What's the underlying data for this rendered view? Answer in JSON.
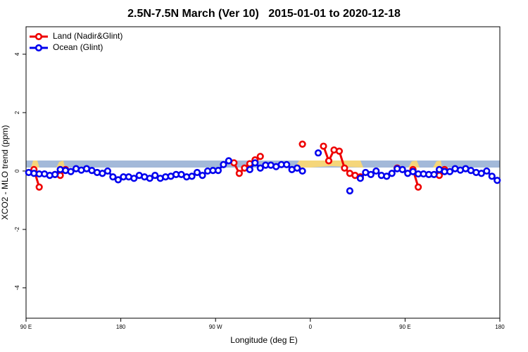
{
  "chart_data": {
    "type": "line",
    "title": "2.5N-7.5N March (Ver 10)   2015-01-01 to 2020-12-18",
    "x_label": "Longitude (deg E)",
    "y_label": "XCO2 - MLO trend (ppm)",
    "xlim": [
      90,
      540
    ],
    "ylim": [
      -5.04,
      4.94
    ],
    "xticks": [
      {
        "value": 90,
        "label": "90 E"
      },
      180,
      {
        "value": 270,
        "label": "90 W"
      },
      {
        "value": 360,
        "label": "0"
      },
      {
        "value": 450,
        "label": "90 E"
      },
      {
        "value": 540,
        "label": "180"
      }
    ],
    "yticks": [
      -4,
      -2,
      0,
      2,
      4
    ],
    "legend": "top-left",
    "x": [
      92.5,
      97.5,
      102.5,
      107.5,
      112.5,
      117.5,
      122.5,
      127.5,
      132.5,
      137.5,
      142.5,
      147.5,
      152.5,
      157.5,
      162.5,
      167.5,
      172.5,
      177.5,
      182.5,
      187.5,
      192.5,
      197.5,
      202.5,
      207.5,
      212.5,
      217.5,
      222.5,
      227.5,
      232.5,
      237.5,
      242.5,
      247.5,
      252.5,
      257.5,
      262.5,
      267.5,
      272.5,
      277.5,
      282.5,
      287.5,
      292.5,
      297.5,
      302.5,
      307.5,
      312.5,
      317.5,
      322.5,
      327.5,
      332.5,
      337.5,
      342.5,
      347.5,
      352.5,
      357.5,
      362.5,
      367.5,
      372.5,
      377.5,
      382.5,
      387.5,
      392.5,
      397.5,
      402.5,
      407.5,
      412.5,
      417.5,
      422.5,
      427.5,
      432.5,
      437.5,
      442.5,
      447.5,
      452.5,
      457.5,
      462.5,
      467.5,
      472.5,
      477.5,
      482.5,
      487.5,
      492.5,
      497.5,
      502.5,
      507.5,
      512.5,
      517.5,
      522.5,
      527.5,
      532.5,
      537.5
    ],
    "series": [
      {
        "name": "Land (Nadir&Glint)",
        "color": "#ee0000",
        "values": [
          null,
          0.05,
          -0.55,
          null,
          null,
          -0.12,
          -0.15,
          0.05,
          null,
          null,
          null,
          null,
          null,
          null,
          null,
          null,
          null,
          null,
          null,
          null,
          null,
          null,
          null,
          null,
          null,
          null,
          null,
          null,
          null,
          null,
          null,
          null,
          null,
          null,
          null,
          null,
          null,
          null,
          null,
          0.28,
          -0.08,
          0.1,
          0.25,
          0.38,
          0.5,
          null,
          null,
          null,
          null,
          null,
          null,
          null,
          0.92,
          null,
          null,
          null,
          0.85,
          0.35,
          0.72,
          0.68,
          0.1,
          -0.08,
          -0.15,
          -0.2,
          null,
          null,
          null,
          null,
          null,
          null,
          0.1,
          null,
          null,
          0.05,
          -0.55,
          null,
          null,
          null,
          -0.15,
          0.05,
          null,
          null,
          null,
          null,
          null,
          null,
          null,
          null,
          null,
          null
        ]
      },
      {
        "name": "Ocean (Glint)",
        "color": "#0000ee",
        "values": [
          -0.05,
          -0.08,
          -0.1,
          -0.1,
          -0.15,
          -0.12,
          0.05,
          0.02,
          -0.02,
          0.08,
          0.03,
          0.08,
          0.02,
          -0.05,
          -0.08,
          0.0,
          -0.2,
          -0.3,
          -0.2,
          -0.2,
          -0.25,
          -0.15,
          -0.2,
          -0.25,
          -0.15,
          -0.25,
          -0.2,
          -0.18,
          -0.12,
          -0.12,
          -0.2,
          -0.18,
          -0.05,
          -0.15,
          0.0,
          0.02,
          0.02,
          0.22,
          0.35,
          null,
          null,
          null,
          0.05,
          0.28,
          0.1,
          0.2,
          0.2,
          0.15,
          0.22,
          0.22,
          0.05,
          0.1,
          0.0,
          null,
          null,
          0.62,
          null,
          null,
          null,
          null,
          null,
          -0.68,
          null,
          -0.25,
          -0.05,
          -0.12,
          0.0,
          -0.15,
          -0.18,
          -0.08,
          0.08,
          0.05,
          -0.08,
          -0.02,
          -0.1,
          -0.1,
          -0.12,
          -0.12,
          0.05,
          -0.02,
          -0.02,
          0.08,
          0.03,
          0.08,
          0.02,
          -0.05,
          -0.08,
          0.0,
          -0.18,
          -0.32
        ]
      }
    ]
  }
}
